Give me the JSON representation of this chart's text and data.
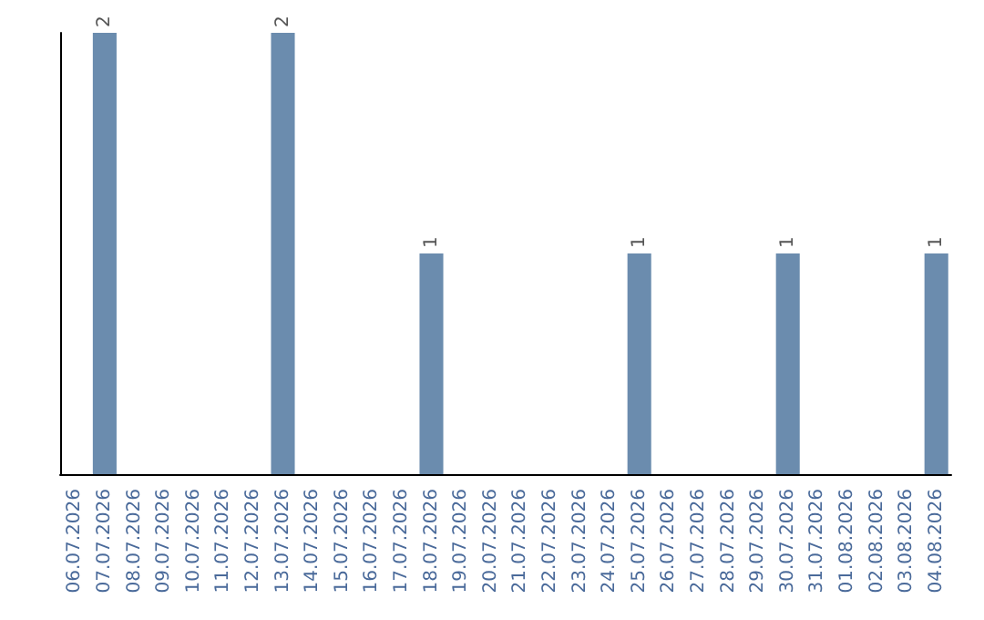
{
  "chart_data": {
    "type": "bar",
    "categories": [
      "06.07.2026",
      "07.07.2026",
      "08.07.2026",
      "09.07.2026",
      "10.07.2026",
      "11.07.2026",
      "12.07.2026",
      "13.07.2026",
      "14.07.2026",
      "15.07.2026",
      "16.07.2026",
      "17.07.2026",
      "18.07.2026",
      "19.07.2026",
      "20.07.2026",
      "21.07.2026",
      "22.07.2026",
      "23.07.2026",
      "24.07.2026",
      "25.07.2026",
      "26.07.2026",
      "27.07.2026",
      "28.07.2026",
      "29.07.2026",
      "30.07.2026",
      "31.07.2026",
      "01.08.2026",
      "02.08.2026",
      "03.08.2026",
      "04.08.2026"
    ],
    "values": [
      0,
      2,
      0,
      0,
      0,
      0,
      0,
      2,
      0,
      0,
      0,
      0,
      1,
      0,
      0,
      0,
      0,
      0,
      0,
      1,
      0,
      0,
      0,
      0,
      1,
      0,
      0,
      0,
      0,
      1
    ],
    "value_labels": [
      null,
      "2",
      null,
      null,
      null,
      null,
      null,
      "2",
      null,
      null,
      null,
      null,
      "1",
      null,
      null,
      null,
      null,
      null,
      null,
      "1",
      null,
      null,
      null,
      null,
      "1",
      null,
      null,
      null,
      null,
      "1"
    ],
    "color": "#6b8cae",
    "tick_labels": "x"
  }
}
